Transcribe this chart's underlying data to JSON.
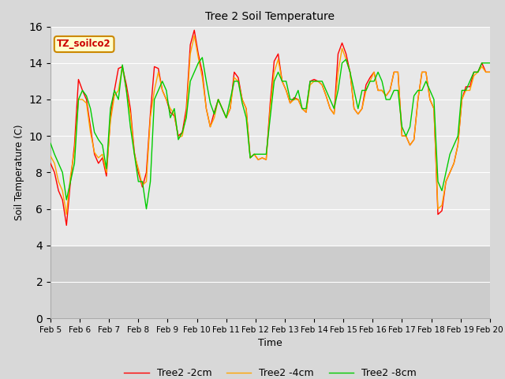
{
  "title": "Tree 2 Soil Temperature",
  "xlabel": "Time",
  "ylabel": "Soil Temperature (C)",
  "annotation": "TZ_soilco2",
  "ylim": [
    0,
    16
  ],
  "yticks": [
    0,
    2,
    4,
    6,
    8,
    10,
    12,
    14,
    16
  ],
  "xtick_labels": [
    "Feb 5",
    "Feb 6",
    "Feb 7",
    "Feb 8",
    "Feb 9",
    "Feb 10",
    "Feb 11",
    "Feb 12",
    "Feb 13",
    "Feb 14",
    "Feb 15",
    "Feb 16",
    "Feb 17",
    "Feb 18",
    "Feb 19",
    "Feb 20"
  ],
  "fig_facecolor": "#d8d8d8",
  "axes_facecolor": "#e8e8e8",
  "inactive_band_color": "#cccccc",
  "line_colors": [
    "#ff0000",
    "#ffa500",
    "#00cc00"
  ],
  "legend_labels": [
    "Tree2 -2cm",
    "Tree2 -4cm",
    "Tree2 -8cm"
  ],
  "annotation_facecolor": "#ffffcc",
  "annotation_edgecolor": "#cc8800",
  "annotation_textcolor": "#cc0000",
  "grid_color": "#ffffff",
  "series_2cm": [
    8.5,
    8.0,
    7.0,
    6.5,
    5.1,
    7.5,
    9.5,
    13.1,
    12.5,
    12.0,
    10.5,
    9.0,
    8.5,
    8.8,
    7.8,
    11.0,
    12.5,
    13.7,
    13.8,
    12.8,
    11.5,
    9.1,
    8.0,
    7.2,
    8.0,
    11.2,
    13.8,
    13.7,
    12.5,
    12.0,
    11.3,
    11.1,
    10.0,
    10.2,
    11.5,
    15.0,
    15.8,
    14.5,
    13.5,
    11.5,
    10.5,
    11.3,
    12.0,
    11.5,
    11.0,
    11.5,
    13.5,
    13.2,
    12.0,
    11.5,
    8.8,
    9.0,
    8.7,
    8.8,
    8.7,
    11.8,
    14.1,
    14.5,
    13.0,
    12.5,
    11.8,
    12.1,
    12.0,
    11.5,
    11.3,
    13.0,
    13.1,
    13.0,
    12.8,
    12.2,
    11.5,
    11.2,
    14.5,
    15.1,
    14.5,
    13.5,
    11.5,
    11.2,
    11.5,
    12.8,
    13.2,
    13.5,
    12.5,
    12.5,
    12.2,
    12.5,
    13.5,
    13.5,
    10.0,
    10.0,
    9.5,
    9.8,
    12.0,
    13.5,
    13.5,
    12.0,
    11.5,
    5.7,
    5.9,
    7.5,
    8.0,
    8.5,
    9.5,
    12.0,
    12.7,
    12.7,
    13.5,
    13.5,
    14.0,
    13.5,
    13.5
  ],
  "series_4cm": [
    8.9,
    8.5,
    7.5,
    7.0,
    5.7,
    7.8,
    9.2,
    12.0,
    12.0,
    11.8,
    10.2,
    9.1,
    8.8,
    9.0,
    8.0,
    10.8,
    12.2,
    12.5,
    13.8,
    12.5,
    11.2,
    9.0,
    8.2,
    7.3,
    7.5,
    11.0,
    12.5,
    13.5,
    12.5,
    12.0,
    11.5,
    11.2,
    9.9,
    10.0,
    11.2,
    14.5,
    15.5,
    14.3,
    13.2,
    11.5,
    10.5,
    11.0,
    12.0,
    11.5,
    11.0,
    11.5,
    13.2,
    13.0,
    12.0,
    11.5,
    8.8,
    9.0,
    8.7,
    8.8,
    8.7,
    11.5,
    13.5,
    14.2,
    13.0,
    12.5,
    11.8,
    12.0,
    12.0,
    11.5,
    11.3,
    12.8,
    13.0,
    13.0,
    12.8,
    12.2,
    11.5,
    11.2,
    13.5,
    14.8,
    14.2,
    13.5,
    11.5,
    11.2,
    11.5,
    12.5,
    13.0,
    13.5,
    12.5,
    12.5,
    12.2,
    12.5,
    13.5,
    13.5,
    10.0,
    10.0,
    9.5,
    9.8,
    12.0,
    13.5,
    13.5,
    12.0,
    11.5,
    6.0,
    6.2,
    7.5,
    8.0,
    8.5,
    9.5,
    12.0,
    12.5,
    12.5,
    13.3,
    13.5,
    13.8,
    13.5,
    13.5
  ],
  "series_8cm": [
    9.6,
    9.0,
    8.5,
    8.0,
    6.5,
    7.5,
    8.5,
    12.0,
    12.5,
    12.2,
    11.5,
    10.2,
    9.8,
    9.5,
    8.2,
    11.5,
    12.5,
    12.0,
    13.9,
    12.5,
    10.5,
    9.0,
    7.5,
    7.5,
    6.0,
    7.5,
    12.0,
    12.5,
    13.0,
    12.5,
    11.0,
    11.5,
    9.8,
    10.2,
    11.0,
    13.0,
    13.5,
    14.0,
    14.3,
    13.0,
    11.8,
    11.2,
    12.0,
    11.5,
    11.0,
    12.0,
    13.0,
    13.0,
    11.8,
    11.0,
    8.8,
    9.0,
    9.0,
    9.0,
    9.0,
    11.0,
    13.0,
    13.5,
    13.0,
    13.0,
    12.0,
    12.0,
    12.5,
    11.5,
    11.5,
    13.0,
    13.0,
    13.0,
    13.0,
    12.5,
    12.0,
    11.5,
    12.5,
    14.0,
    14.2,
    13.5,
    12.5,
    11.5,
    12.5,
    12.5,
    13.0,
    13.0,
    13.5,
    13.0,
    12.0,
    12.0,
    12.5,
    12.5,
    10.5,
    10.0,
    10.5,
    12.2,
    12.5,
    12.5,
    13.0,
    12.5,
    12.0,
    7.5,
    7.0,
    8.0,
    9.0,
    9.5,
    10.0,
    12.5,
    12.5,
    13.0,
    13.5,
    13.5,
    14.0,
    14.0,
    14.0
  ]
}
